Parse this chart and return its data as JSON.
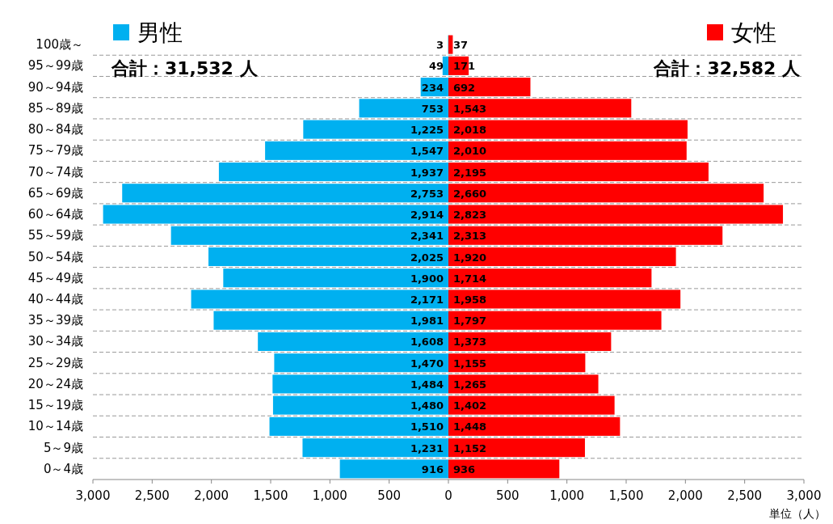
{
  "chart_data": [
    {
      "type": "bar",
      "orientation": "horizontal",
      "categories": [
        "100歳～",
        "95～99歳",
        "90～94歳",
        "85～89歳",
        "80～84歳",
        "75～79歳",
        "70～74歳",
        "65～69歳",
        "60～64歳",
        "55～59歳",
        "50～54歳",
        "45～49歳",
        "40～44歳",
        "35～39歳",
        "30～34歳",
        "25～29歳",
        "20～24歳",
        "15～19歳",
        "10～14歳",
        "5～9歳",
        "0～4歳"
      ],
      "series": [
        {
          "name": "男性",
          "color": "#00b0f0",
          "values": [
            3,
            49,
            234,
            753,
            1225,
            1547,
            1937,
            2753,
            2914,
            2341,
            2025,
            1900,
            2171,
            1981,
            1608,
            1470,
            1484,
            1480,
            1510,
            1231,
            916
          ],
          "value_labels": [
            "3",
            "49",
            "234",
            "753",
            "1,225",
            "1,547",
            "1,937",
            "2,753",
            "2,914",
            "2,341",
            "2,025",
            "1,900",
            "2,171",
            "1,981",
            "1,608",
            "1,470",
            "1,484",
            "1,480",
            "1,510",
            "1,231",
            "916"
          ]
        }
      ],
      "xlim": [
        3000,
        0
      ],
      "xticks": [
        {
          "value": 3000,
          "label": "3,000"
        },
        {
          "value": 2500,
          "label": "2,500"
        },
        {
          "value": 2000,
          "label": "2,000"
        },
        {
          "value": 1500,
          "label": "1,500"
        },
        {
          "value": 1000,
          "label": "1,000"
        },
        {
          "value": 500,
          "label": "500"
        }
      ],
      "grid": "y",
      "legend": "top left",
      "annotations": [
        "合計：31,532 人"
      ]
    },
    {
      "type": "bar",
      "orientation": "horizontal",
      "tick_labels": "x",
      "categories": [
        null,
        null,
        null,
        null,
        null,
        null,
        null,
        null,
        null,
        null,
        null,
        null,
        null,
        null,
        null,
        null,
        null,
        null,
        null,
        null,
        null
      ],
      "series": [
        {
          "name": "女性",
          "color": "#ff0000",
          "values": [
            37,
            171,
            692,
            1543,
            2018,
            2010,
            2195,
            2660,
            2823,
            2313,
            1920,
            1714,
            1958,
            1797,
            1373,
            1155,
            1265,
            1402,
            1448,
            1152,
            936
          ],
          "value_labels": [
            "37",
            "171",
            "692",
            "1,543",
            "2,018",
            "2,010",
            "2,195",
            "2,660",
            "2,823",
            "2,313",
            "1,920",
            "1,714",
            "1,958",
            "1,797",
            "1,373",
            "1,155",
            "1,265",
            "1,402",
            "1,448",
            "1,152",
            "936"
          ]
        }
      ],
      "xlim": [
        0,
        3000
      ],
      "xticks": [
        {
          "value": 0,
          "label": "0"
        },
        {
          "value": 500,
          "label": "500"
        },
        {
          "value": 1000,
          "label": "1,000"
        },
        {
          "value": 1500,
          "label": "1,500"
        },
        {
          "value": 2000,
          "label": "2,000"
        },
        {
          "value": 2500,
          "label": "2,500"
        },
        {
          "value": 3000,
          "label": "3,000"
        }
      ],
      "grid": "y",
      "legend": "top right",
      "annotations": [
        "合計：32,582 人",
        "単位（人）"
      ]
    }
  ]
}
